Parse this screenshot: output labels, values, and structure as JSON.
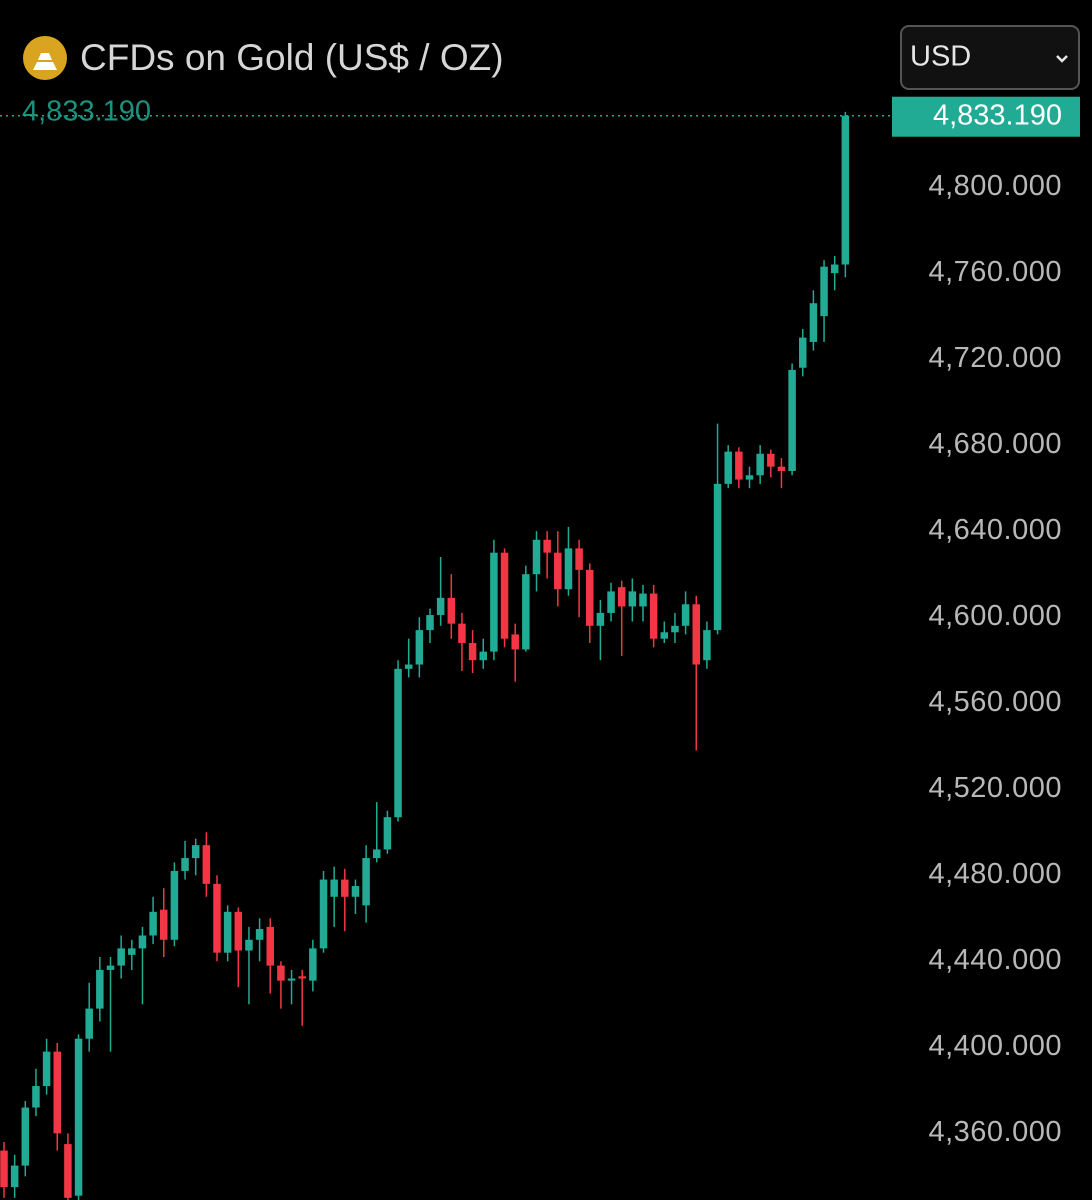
{
  "chart_data": {
    "type": "candlestick",
    "title": "CFDs on Gold (US$ / OZ)",
    "currency": "USD",
    "current_price": {
      "value": 4833.19,
      "label": "4,833.190"
    },
    "up_color": "#22ab94",
    "down_color": "#f23645",
    "ylim": [
      4329,
      4887
    ],
    "yticks": [
      {
        "value": 4360,
        "label": "4,360.000"
      },
      {
        "value": 4400,
        "label": "4,400.000"
      },
      {
        "value": 4440,
        "label": "4,440.000"
      },
      {
        "value": 4480,
        "label": "4,480.000"
      },
      {
        "value": 4520,
        "label": "4,520.000"
      },
      {
        "value": 4560,
        "label": "4,560.000"
      },
      {
        "value": 4600,
        "label": "4,600.000"
      },
      {
        "value": 4640,
        "label": "4,640.000"
      },
      {
        "value": 4680,
        "label": "4,680.000"
      },
      {
        "value": 4720,
        "label": "4,720.000"
      },
      {
        "value": 4760,
        "label": "4,760.000"
      },
      {
        "value": 4800,
        "label": "4,800.000"
      }
    ],
    "open": [
      4352,
      4335,
      4345,
      4372,
      4382,
      4398,
      4355,
      4331,
      4404,
      4418,
      4436,
      4438,
      4443,
      4446,
      4452,
      4464,
      4450,
      4482,
      4488,
      4494,
      4476,
      4444,
      4463,
      4445,
      4450,
      4456,
      4438,
      4431,
      4433,
      4431,
      4446,
      4470,
      4478,
      4470,
      4466,
      4488,
      4492,
      4507,
      4576,
      4578,
      4594,
      4601,
      4609,
      4597,
      4588,
      4580,
      4584,
      4630,
      4592,
      4585,
      4620,
      4636,
      4630,
      4613,
      4632,
      4622,
      4596,
      4602,
      4614,
      4605,
      4605,
      4611,
      4590,
      4593,
      4596,
      4606,
      4580,
      4594,
      4662,
      4677,
      4664,
      4666,
      4676,
      4670,
      4668,
      4716,
      4728,
      4740,
      4760,
      4764
    ],
    "high": [
      4356,
      4350,
      4375,
      4390,
      4404,
      4402,
      4360,
      4406,
      4430,
      4442,
      4442,
      4452,
      4450,
      4456,
      4470,
      4474,
      4486,
      4496,
      4497,
      4500,
      4480,
      4466,
      4465,
      4456,
      4460,
      4460,
      4440,
      4436,
      4436,
      4450,
      4482,
      4484,
      4483,
      4478,
      4494,
      4514,
      4510,
      4580,
      4590,
      4600,
      4604,
      4628,
      4620,
      4602,
      4594,
      4590,
      4636,
      4632,
      4597,
      4624,
      4640,
      4640,
      4640,
      4642,
      4636,
      4625,
      4608,
      4616,
      4617,
      4618,
      4615,
      4615,
      4598,
      4602,
      4612,
      4610,
      4598,
      4690,
      4680,
      4679,
      4670,
      4680,
      4678,
      4674,
      4718,
      4734,
      4752,
      4766,
      4768,
      4835
    ],
    "low": [
      4330,
      4330,
      4340,
      4368,
      4378,
      4352,
      4328,
      4329,
      4398,
      4412,
      4398,
      4432,
      4436,
      4420,
      4448,
      4442,
      4447,
      4478,
      4480,
      4470,
      4440,
      4440,
      4428,
      4420,
      4440,
      4425,
      4418,
      4420,
      4410,
      4426,
      4444,
      4456,
      4454,
      4462,
      4458,
      4486,
      4490,
      4505,
      4572,
      4572,
      4588,
      4596,
      4590,
      4575,
      4574,
      4576,
      4580,
      4586,
      4570,
      4584,
      4612,
      4618,
      4605,
      4610,
      4600,
      4588,
      4580,
      4598,
      4582,
      4598,
      4598,
      4586,
      4588,
      4588,
      4592,
      4538,
      4576,
      4592,
      4660,
      4660,
      4660,
      4662,
      4665,
      4660,
      4666,
      4712,
      4724,
      4728,
      4752,
      4758
    ],
    "close": [
      4335,
      4345,
      4372,
      4382,
      4398,
      4360,
      4330,
      4404,
      4418,
      4436,
      4438,
      4446,
      4446,
      4452,
      4463,
      4450,
      4482,
      4488,
      4494,
      4476,
      4444,
      4463,
      4445,
      4450,
      4455,
      4438,
      4431,
      4432,
      4432,
      4446,
      4478,
      4478,
      4470,
      4475,
      4488,
      4492,
      4507,
      4576,
      4578,
      4594,
      4601,
      4609,
      4597,
      4588,
      4580,
      4584,
      4630,
      4590,
      4585,
      4620,
      4636,
      4630,
      4613,
      4632,
      4622,
      4596,
      4602,
      4612,
      4605,
      4612,
      4611,
      4590,
      4593,
      4596,
      4606,
      4578,
      4594,
      4662,
      4677,
      4664,
      4666,
      4676,
      4670,
      4668,
      4715,
      4730,
      4746,
      4763,
      4764,
      4833.19
    ]
  }
}
